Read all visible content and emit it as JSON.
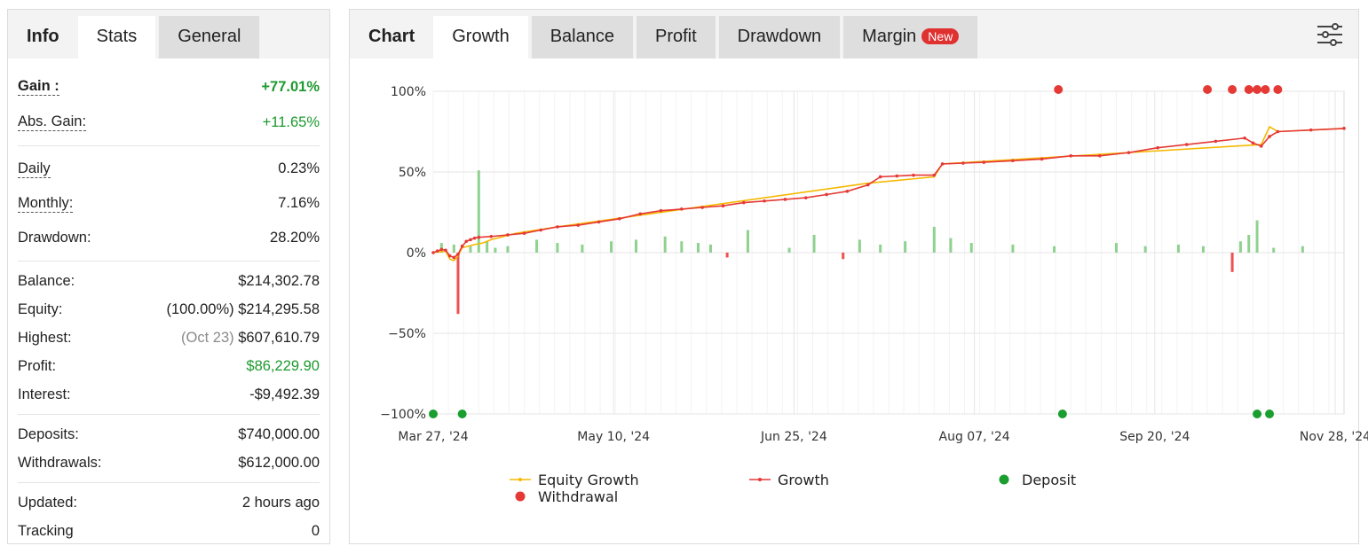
{
  "left_tabs": [
    "Info",
    "Stats",
    "General"
  ],
  "stats": {
    "gain_label": "Gain :",
    "gain_value": "+77.01%",
    "abs_gain_label": "Abs. Gain:",
    "abs_gain_value": "+11.65%",
    "daily_label": "Daily",
    "daily_value": "0.23%",
    "monthly_label": "Monthly:",
    "monthly_value": "7.16%",
    "drawdown_label": "Drawdown:",
    "drawdown_value": "28.20%",
    "balance_label": "Balance:",
    "balance_value": "$214,302.78",
    "equity_label": "Equity:",
    "equity_pct": "(100.00%)",
    "equity_value": "$214,295.58",
    "highest_label": "Highest:",
    "highest_date": "(Oct 23)",
    "highest_value": "$607,610.79",
    "profit_label": "Profit:",
    "profit_value": "$86,229.90",
    "interest_label": "Interest:",
    "interest_value": "-$9,492.39",
    "deposits_label": "Deposits:",
    "deposits_value": "$740,000.00",
    "withdrawals_label": "Withdrawals:",
    "withdrawals_value": "$612,000.00",
    "updated_label": "Updated:",
    "updated_value": "2 hours ago",
    "tracking_label": "Tracking",
    "tracking_value": "0"
  },
  "chart_tabs": {
    "chart": "Chart",
    "growth": "Growth",
    "balance": "Balance",
    "profit": "Profit",
    "drawdown": "Drawdown",
    "margin": "Margin",
    "new_badge": "New"
  },
  "settings_icon": "sliders-icon",
  "colors": {
    "growth": "#e53935",
    "equity": "#f5b800",
    "deposit": "#1a9e2f",
    "withdrawal": "#e53935",
    "bar_pos": "#8fd18f",
    "bar_neg": "#f05050"
  },
  "chart_data": {
    "type": "line",
    "y_ticks": [
      "100%",
      "50%",
      "0%",
      "−50%",
      "−100%"
    ],
    "ylim": [
      -100,
      100
    ],
    "x_ticks": [
      "Mar 27, '24",
      "May 10, '24",
      "Jun 25, '24",
      "Aug 07, '24",
      "Sep 20, '24",
      "Nov 28, '24"
    ],
    "legend": [
      "Equity Growth",
      "Growth",
      "Deposit",
      "Withdrawal"
    ],
    "growth": [
      [
        0,
        0
      ],
      [
        1,
        1
      ],
      [
        2,
        2
      ],
      [
        3,
        1.5
      ],
      [
        4,
        -2
      ],
      [
        5,
        -3
      ],
      [
        6,
        -1
      ],
      [
        7,
        4
      ],
      [
        8,
        7
      ],
      [
        9,
        8
      ],
      [
        10,
        9
      ],
      [
        11,
        9.5
      ],
      [
        14,
        10
      ],
      [
        18,
        11
      ],
      [
        22,
        12
      ],
      [
        26,
        14
      ],
      [
        30,
        16
      ],
      [
        35,
        17
      ],
      [
        40,
        19
      ],
      [
        45,
        21
      ],
      [
        50,
        24
      ],
      [
        55,
        26
      ],
      [
        60,
        27
      ],
      [
        65,
        28
      ],
      [
        70,
        29
      ],
      [
        75,
        31
      ],
      [
        80,
        32
      ],
      [
        85,
        33
      ],
      [
        90,
        34
      ],
      [
        95,
        36
      ],
      [
        100,
        38
      ],
      [
        105,
        42
      ],
      [
        108,
        47
      ],
      [
        112,
        47.5
      ],
      [
        116,
        48
      ],
      [
        121,
        48
      ],
      [
        123,
        55
      ],
      [
        128,
        55.5
      ],
      [
        133,
        56
      ],
      [
        140,
        57
      ],
      [
        147,
        58
      ],
      [
        154,
        60
      ],
      [
        161,
        60
      ],
      [
        168,
        62
      ],
      [
        175,
        65
      ],
      [
        182,
        67
      ],
      [
        189,
        69
      ],
      [
        196,
        71
      ],
      [
        198,
        68
      ],
      [
        200,
        66
      ],
      [
        202,
        72
      ],
      [
        204,
        75
      ],
      [
        212,
        76
      ],
      [
        220,
        77
      ]
    ],
    "equity_growth": [
      [
        0,
        0
      ],
      [
        3,
        1
      ],
      [
        4,
        -4
      ],
      [
        5,
        -5
      ],
      [
        6,
        -2
      ],
      [
        7,
        3
      ],
      [
        10,
        5
      ],
      [
        12,
        6
      ],
      [
        14,
        8
      ],
      [
        20,
        12
      ],
      [
        30,
        16
      ],
      [
        105,
        43
      ],
      [
        121,
        47
      ],
      [
        123,
        55
      ],
      [
        200,
        67
      ],
      [
        202,
        78
      ],
      [
        204,
        75
      ],
      [
        220,
        77
      ]
    ],
    "bars": [
      [
        2,
        6
      ],
      [
        5,
        5
      ],
      [
        6,
        -38
      ],
      [
        9,
        4
      ],
      [
        11,
        51
      ],
      [
        13,
        7
      ],
      [
        15,
        3
      ],
      [
        18,
        4
      ],
      [
        25,
        8
      ],
      [
        30,
        6
      ],
      [
        36,
        5
      ],
      [
        43,
        7
      ],
      [
        49,
        8
      ],
      [
        56,
        10
      ],
      [
        60,
        7
      ],
      [
        64,
        6
      ],
      [
        67,
        5
      ],
      [
        71,
        -3
      ],
      [
        76,
        14
      ],
      [
        86,
        3
      ],
      [
        92,
        11
      ],
      [
        99,
        -4
      ],
      [
        103,
        8
      ],
      [
        108,
        5
      ],
      [
        114,
        7
      ],
      [
        121,
        16
      ],
      [
        125,
        9
      ],
      [
        130,
        6
      ],
      [
        140,
        5
      ],
      [
        150,
        4
      ],
      [
        165,
        6
      ],
      [
        172,
        4
      ],
      [
        180,
        5
      ],
      [
        186,
        4
      ],
      [
        193,
        -12
      ],
      [
        195,
        7
      ],
      [
        197,
        11
      ],
      [
        199,
        20
      ],
      [
        203,
        3
      ],
      [
        210,
        4
      ]
    ],
    "deposits_x": [
      0,
      7,
      152,
      199,
      202
    ],
    "withdrawals_x": [
      151,
      187,
      193,
      197,
      199,
      201,
      204
    ]
  }
}
